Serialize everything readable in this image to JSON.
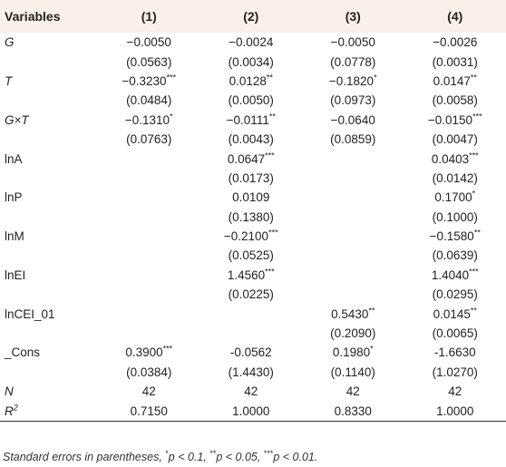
{
  "headers": [
    "Variables",
    "(1)",
    "(2)",
    "(3)",
    "(4)"
  ],
  "rows": [
    {
      "var": "G",
      "italic": true,
      "coef": [
        "−0.0050",
        "−0.0024",
        "−0.0050",
        "−0.0026"
      ],
      "stars": [
        "",
        "",
        "",
        ""
      ],
      "se": [
        "(0.0563)",
        "(0.0034)",
        "(0.0778)",
        "(0.0031)"
      ]
    },
    {
      "var": "T",
      "italic": true,
      "coef": [
        "−0.3230",
        "0.0128",
        "−0.1820",
        "0.0147"
      ],
      "stars": [
        "***",
        "**",
        "*",
        "**"
      ],
      "se": [
        "(0.0484)",
        "(0.0050)",
        "(0.0973)",
        "(0.0058)"
      ]
    },
    {
      "var": "G×T",
      "italic": true,
      "coef": [
        "−0.1310",
        "−0.0111",
        "−0.0640",
        "−0.0150"
      ],
      "stars": [
        "*",
        "**",
        "",
        "***"
      ],
      "se": [
        "(0.0763)",
        "(0.0043)",
        "(0.0859)",
        "(0.0047)"
      ]
    },
    {
      "var": "lnA",
      "italic": false,
      "coef": [
        "",
        "0.0647",
        "",
        "0.0403"
      ],
      "stars": [
        "",
        "***",
        "",
        "***"
      ],
      "se": [
        "",
        "(0.0173)",
        "",
        "(0.0142)"
      ]
    },
    {
      "var": "lnP",
      "italic": false,
      "coef": [
        "",
        "0.0109",
        "",
        "0.1700"
      ],
      "stars": [
        "",
        "",
        "",
        "*"
      ],
      "se": [
        "",
        "(0.1380)",
        "",
        "(0.1000)"
      ]
    },
    {
      "var": "lnM",
      "italic": false,
      "coef": [
        "",
        "−0.2100",
        "",
        "−0.1580"
      ],
      "stars": [
        "",
        "***",
        "",
        "**"
      ],
      "se": [
        "",
        "(0.0525)",
        "",
        "(0.0639)"
      ]
    },
    {
      "var": "lnEI",
      "italic": false,
      "coef": [
        "",
        "1.4560",
        "",
        "1.4040"
      ],
      "stars": [
        "",
        "***",
        "",
        "***"
      ],
      "se": [
        "",
        "(0.0225)",
        "",
        "(0.0295)"
      ]
    },
    {
      "var": "lnCEI_01",
      "italic": false,
      "coef": [
        "",
        "",
        "0.5430",
        "0.0145"
      ],
      "stars": [
        "",
        "",
        "**",
        "**"
      ],
      "se": [
        "",
        "",
        "(0.2090)",
        "(0.0065)"
      ]
    },
    {
      "var": "_Cons",
      "italic": false,
      "coef": [
        "0.3900",
        "-0.0562",
        "0.1980",
        "-1.6630"
      ],
      "stars": [
        "***",
        "",
        "*",
        ""
      ],
      "se": [
        "(0.0384)",
        "(1.4430)",
        "(0.1140)",
        "(1.0270)"
      ]
    }
  ],
  "stats": [
    {
      "var": "N",
      "values": [
        "42",
        "42",
        "42",
        "42"
      ]
    },
    {
      "var": "R",
      "sup": "2",
      "values": [
        "0.7150",
        "1.0000",
        "0.8330",
        "1.0000"
      ]
    }
  ],
  "note": {
    "lead": "Standard errors in parentheses, ",
    "s1": "*",
    "t1": "p < 0.1, ",
    "s2": "**",
    "t2": "p < 0.05, ",
    "s3": "***",
    "t3": "p < 0.01."
  }
}
